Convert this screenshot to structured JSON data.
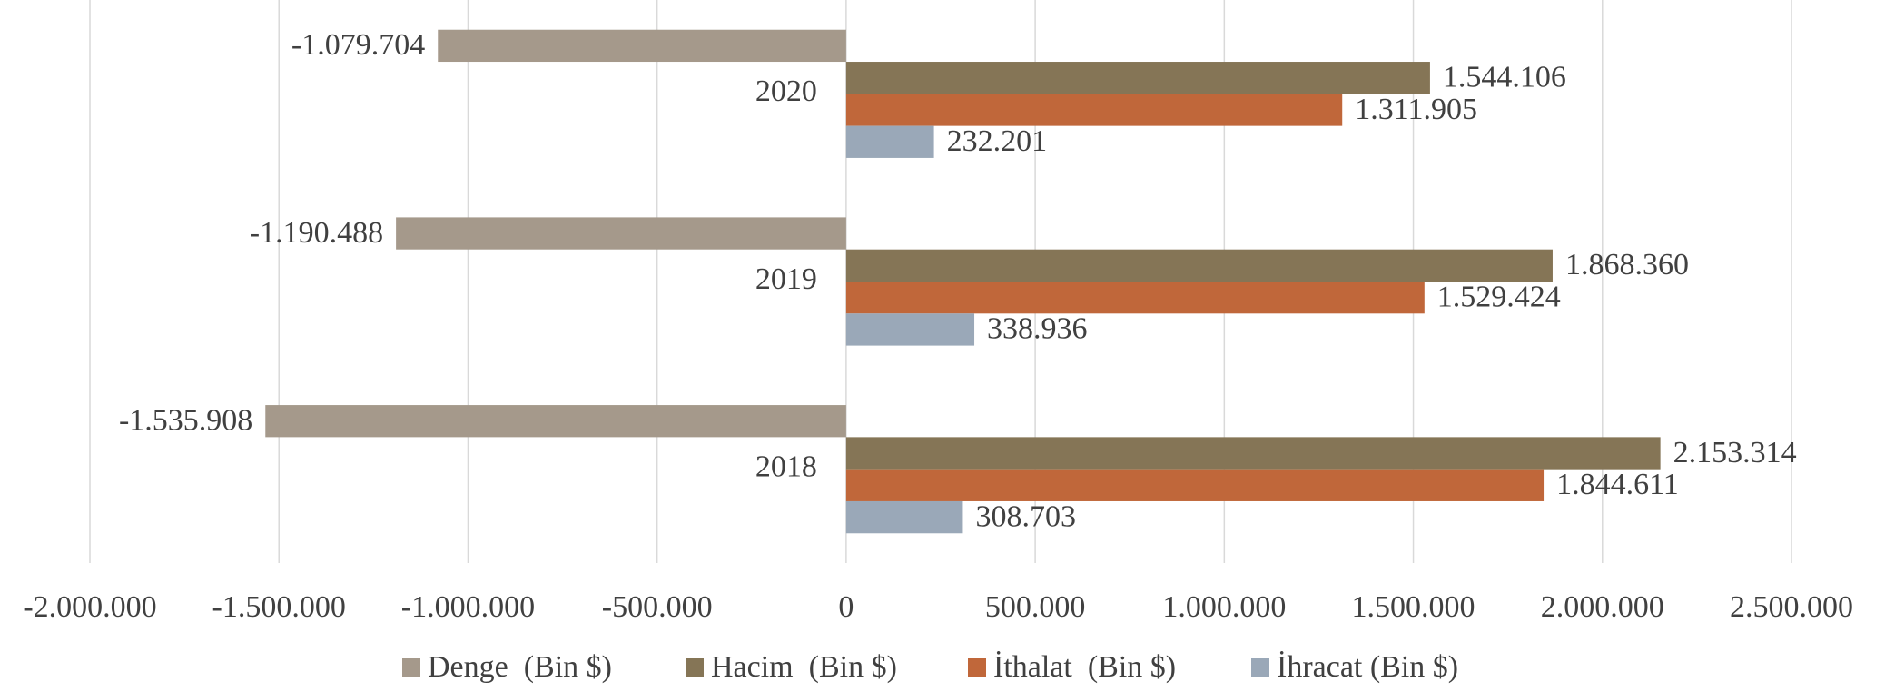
{
  "chart_data": {
    "type": "hbar",
    "categories": [
      "2018",
      "2019",
      "2020"
    ],
    "series": [
      {
        "name": "Denge  (Bin $)",
        "color": "#a5998b",
        "values": [
          -1535908,
          -1190488,
          -1079704
        ],
        "value_labels": [
          "-1.535.908",
          "-1.190.488",
          "-1.079.704"
        ]
      },
      {
        "name": "Hacim  (Bin $)",
        "color": "#857556",
        "values": [
          2153314,
          1868360,
          1544106
        ],
        "value_labels": [
          "2.153.314",
          "1.868.360",
          "1.544.106"
        ]
      },
      {
        "name": "İthalat  (Bin $)",
        "color": "#c0673a",
        "values": [
          1844611,
          1529424,
          1311905
        ],
        "value_labels": [
          "1.844.611",
          "1.529.424",
          "1.311.905"
        ]
      },
      {
        "name": "İhracat (Bin $)",
        "color": "#9aa8b8",
        "values": [
          308703,
          338936,
          232201
        ],
        "value_labels": [
          "308.703",
          "338.936",
          "232.201"
        ]
      }
    ],
    "xlim": [
      -2000000,
      2500000
    ],
    "xticks": [
      {
        "value": -2000000,
        "label": "-2.000.000"
      },
      {
        "value": -1500000,
        "label": "-1.500.000"
      },
      {
        "value": -1000000,
        "label": "-1.000.000"
      },
      {
        "value": -500000,
        "label": "-500.000"
      },
      0,
      {
        "value": 500000,
        "label": "500.000"
      },
      {
        "value": 1000000,
        "label": "1.000.000"
      },
      {
        "value": 1500000,
        "label": "1.500.000"
      },
      {
        "value": 2000000,
        "label": "2.000.000"
      },
      {
        "value": 2500000,
        "label": "2.500.000"
      }
    ],
    "grid": true,
    "legend": "bottom"
  }
}
